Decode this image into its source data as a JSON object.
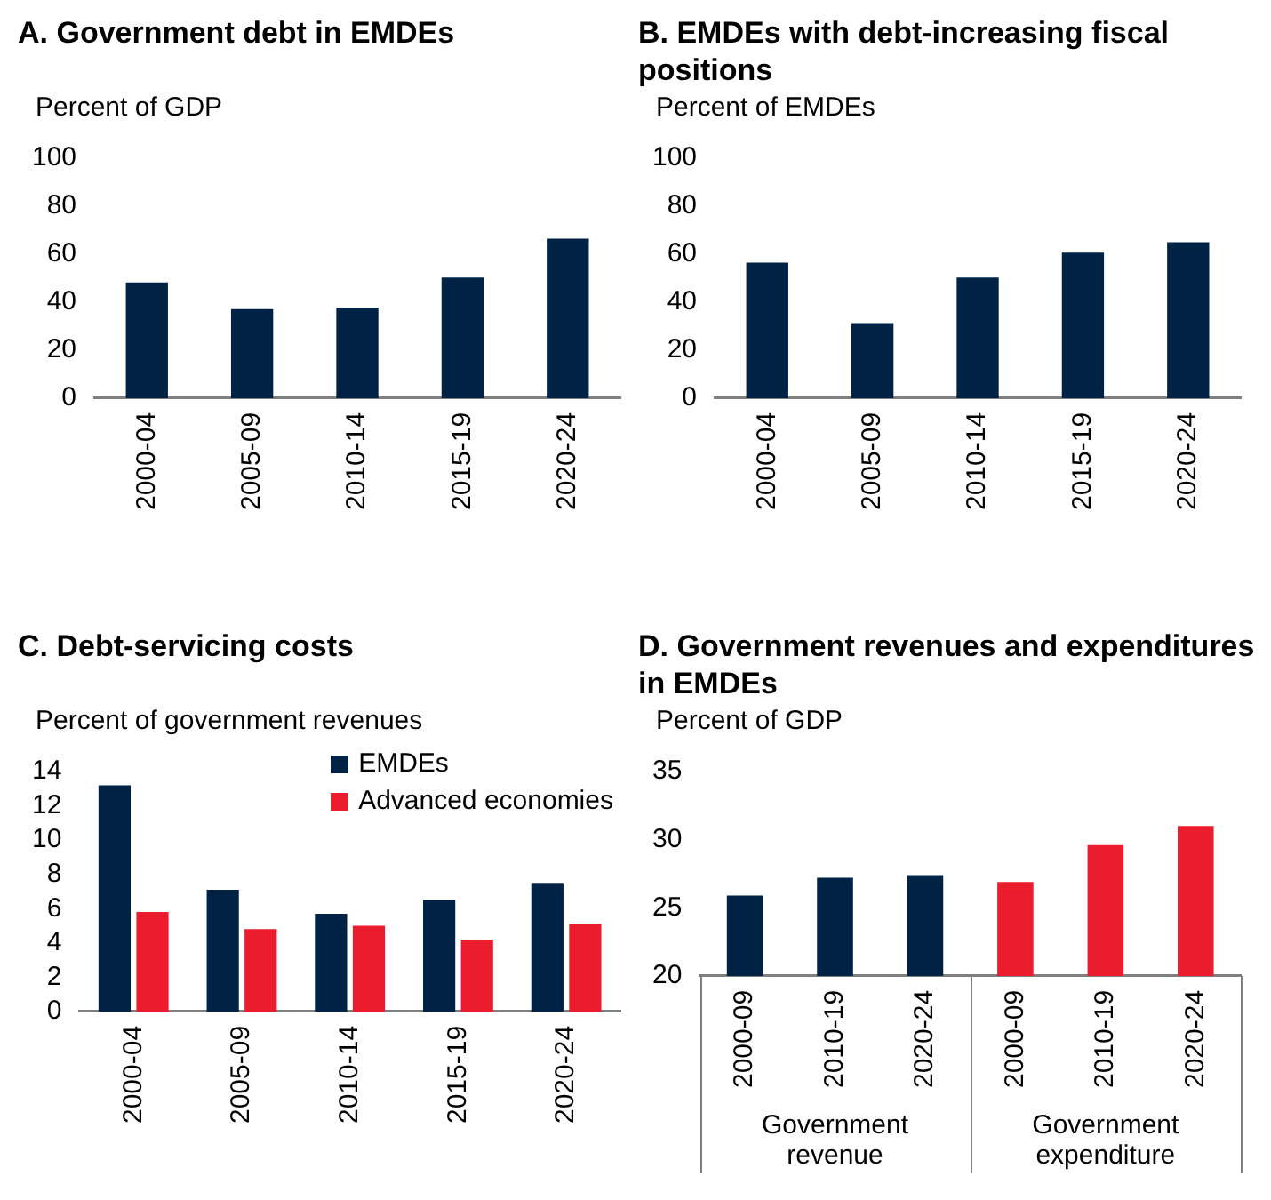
{
  "chart_data": [
    {
      "type": "bar",
      "title": "A. Government debt in EMDEs",
      "ylabel": "Percent of GDP",
      "categories": [
        "2000-04",
        "2005-09",
        "2010-14",
        "2015-19",
        "2020-24"
      ],
      "values": [
        48.2,
        37.1,
        37.8,
        50.3,
        66.5
      ],
      "color": "#002345",
      "ylim": [
        0,
        100
      ],
      "yticks": [
        0,
        20,
        40,
        60,
        80,
        100
      ],
      "grid": false
    },
    {
      "type": "bar",
      "title": "B. EMDEs with debt-increasing fiscal positions",
      "ylabel": "Percent of EMDEs",
      "categories": [
        "2000-04",
        "2005-09",
        "2010-14",
        "2015-19",
        "2020-24"
      ],
      "values": [
        56.5,
        31.3,
        50.3,
        60.6,
        65.0
      ],
      "color": "#002345",
      "ylim": [
        0,
        100
      ],
      "yticks": [
        0,
        20,
        40,
        60,
        80,
        100
      ],
      "grid": false
    },
    {
      "type": "bar",
      "title": "C. Debt-servicing costs",
      "ylabel": "Percent of government revenues",
      "categories": [
        "2000-04",
        "2005-09",
        "2010-14",
        "2015-19",
        "2020-24"
      ],
      "series": [
        {
          "name": "EMDEs",
          "color": "#002345",
          "values": [
            13.2,
            7.1,
            5.7,
            6.5,
            7.5
          ]
        },
        {
          "name": "Advanced economies",
          "color": "#eb1c2d",
          "values": [
            5.8,
            4.8,
            5.0,
            4.2,
            5.1
          ]
        }
      ],
      "ylim": [
        0,
        14
      ],
      "yticks": [
        0,
        2,
        4,
        6,
        8,
        10,
        12,
        14
      ],
      "grid": false,
      "legend": "top right"
    },
    {
      "type": "bar",
      "title": "D. Government revenues and expenditures in EMDEs",
      "ylabel": "Percent of GDP",
      "categories": [
        "2000-09",
        "2010-19",
        "2020-24",
        "2000-09",
        "2010-19",
        "2020-24"
      ],
      "values": [
        25.9,
        27.2,
        27.4,
        26.9,
        29.6,
        31.0
      ],
      "colors": [
        "#002345",
        "#002345",
        "#002345",
        "#eb1c2d",
        "#eb1c2d",
        "#eb1c2d"
      ],
      "ylim": [
        20,
        35
      ],
      "yticks": [
        20,
        25,
        30,
        35
      ],
      "grid": false,
      "annotations": [
        "Government revenue",
        "Government expenditure"
      ]
    }
  ]
}
